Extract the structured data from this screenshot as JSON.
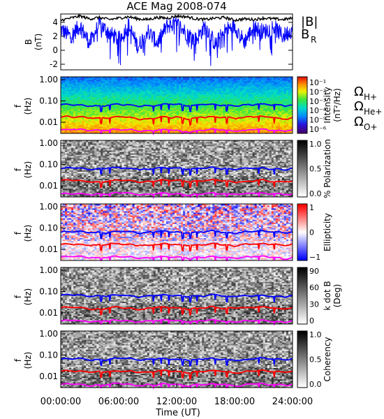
{
  "title": "ACE Mag 2008-074",
  "xlabel": "Time (UT)",
  "x_ticks": [
    "00:00:00",
    "06:00:00",
    "12:00:00",
    "18:00:00",
    "24:00:00"
  ],
  "colors": {
    "B_mag": "#000000",
    "B_R": "#0000ff",
    "omega_h": "#0000ff",
    "omega_he": "#ff0000",
    "omega_o": "#ff00ff"
  },
  "legend": {
    "b_mag": "|B|",
    "b_r_main": "B",
    "b_r_sub": "R",
    "omega": "Ω",
    "h_sub": "H+",
    "he_sub": "He+",
    "o_sub": "O+"
  },
  "chart_data": [
    {
      "type": "line",
      "name": "field",
      "ylabel": "B",
      "yunit": "(nT)",
      "ylim": [
        -2.8,
        5.2
      ],
      "y_ticks": [
        "-2",
        "0",
        "2",
        "4"
      ],
      "xlim_hours": [
        0,
        24
      ],
      "series": [
        {
          "label": "|B|",
          "x_hours": [
            0,
            1,
            2,
            3,
            4,
            5,
            6,
            7,
            8,
            9,
            10,
            11,
            12,
            13,
            14,
            15,
            16,
            17,
            18,
            19,
            20,
            21,
            22,
            23,
            24
          ],
          "values": [
            4.3,
            4.6,
            4.9,
            4.5,
            4.7,
            4.4,
            4.6,
            4.8,
            4.5,
            4.4,
            4.7,
            4.6,
            4.9,
            4.8,
            4.5,
            4.4,
            4.6,
            4.7,
            4.3,
            4.5,
            4.4,
            4.6,
            4.5,
            4.4,
            4.6
          ]
        },
        {
          "label": "B_R",
          "x_hours": [
            0,
            1,
            2,
            3,
            4,
            5,
            6,
            7,
            8,
            9,
            10,
            11,
            12,
            13,
            14,
            15,
            16,
            17,
            18,
            19,
            20,
            21,
            22,
            23,
            24
          ],
          "values": [
            3.0,
            2.0,
            3.5,
            1.0,
            3.8,
            2.5,
            1.5,
            3.6,
            0.5,
            2.8,
            1.0,
            3.5,
            3.8,
            2.5,
            1.5,
            3.5,
            0.8,
            2.8,
            3.5,
            1.2,
            3.3,
            2.6,
            3.4,
            2.0,
            3.0
          ]
        }
      ]
    },
    {
      "type": "heatmap",
      "name": "intensity",
      "ylabel": "f",
      "yunit": "(Hz)",
      "y_ticks": [
        "1.00",
        "0.10",
        "0.01"
      ],
      "cbar_label": "Intensity",
      "cbar_unit": "(nT²/Hz)",
      "cbar_ticks": [
        "10⁻¹",
        "10⁻²",
        "10⁻³",
        "10⁻⁴",
        "10⁻⁵",
        "10⁻⁶"
      ]
    },
    {
      "type": "heatmap",
      "name": "polarization",
      "ylabel": "f",
      "yunit": "(Hz)",
      "y_ticks": [
        "1.00",
        "0.10",
        "0.01"
      ],
      "cbar_label": "% Polarization",
      "cbar_unit": "",
      "cbar_ticks": [
        "1.0",
        "0.5",
        "0.0"
      ]
    },
    {
      "type": "heatmap",
      "name": "ellipticity",
      "ylabel": "f",
      "yunit": "(Hz)",
      "y_ticks": [
        "1.00",
        "0.10",
        "0.01"
      ],
      "cbar_label": "Ellipticity",
      "cbar_unit": "",
      "cbar_ticks": [
        "1",
        "0",
        "−1"
      ]
    },
    {
      "type": "heatmap",
      "name": "kdotb",
      "ylabel": "f",
      "yunit": "(Hz)",
      "y_ticks": [
        "1.00",
        "0.10",
        "0.01"
      ],
      "cbar_label": "k dot B",
      "cbar_unit": "(Deg)",
      "cbar_ticks": [
        "90",
        "60",
        "30",
        "0"
      ]
    },
    {
      "type": "heatmap",
      "name": "coherency",
      "ylabel": "f",
      "yunit": "(Hz)",
      "y_ticks": [
        "1.00",
        "0.10",
        "0.01"
      ],
      "cbar_label": "Coherency",
      "cbar_unit": "",
      "cbar_ticks": [
        "1.0",
        "0.5",
        "0.0"
      ]
    }
  ],
  "gyrofrequency_lines_hz": {
    "H+": 0.065,
    "He+": 0.017,
    "O+": 0.0042
  }
}
